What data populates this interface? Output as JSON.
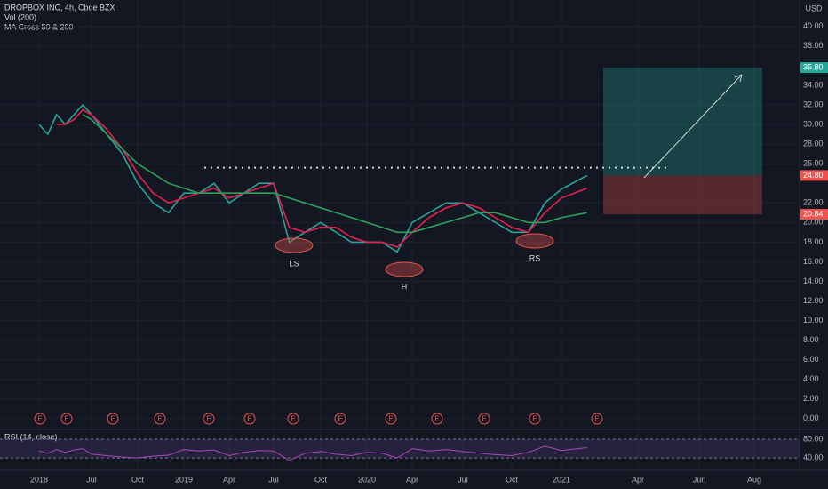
{
  "header": {
    "symbol": "DROPBOX INC, 4h, Cboe BZX",
    "volume": "Vol (200)",
    "indicator": "MA Cross 50 & 200",
    "currency": "USD",
    "earnings_marker": "E"
  },
  "annotations": [
    "LS",
    "H",
    "RS"
  ],
  "levels": {
    "neckline": 25.6,
    "target": 35.8,
    "entry": 24.8,
    "stop": 20.84
  },
  "price_tags": [
    {
      "value": 35.8,
      "label": "35.80",
      "color": "#26a69a"
    },
    {
      "value": 24.8,
      "label": "24.80",
      "color": "#ef5350"
    },
    {
      "value": 20.84,
      "label": "20.84",
      "color": "#ef5350"
    }
  ],
  "chart_data": [
    {
      "type": "line",
      "categories": [
        "2018",
        null,
        null,
        null,
        null,
        null,
        "Jul",
        null,
        null,
        "Oct",
        null,
        null,
        "2019",
        null,
        null,
        "Apr",
        null,
        null,
        "Jul",
        null,
        null,
        "Oct",
        null,
        null,
        "2020",
        null,
        null,
        "Apr",
        null,
        null,
        "Jul",
        null,
        null,
        "Oct",
        null,
        null,
        "2021",
        null,
        null,
        "Apr",
        null,
        "Jun",
        null,
        "Aug"
      ],
      "series": [
        {
          "color": "#26a69a",
          "values": [
            30,
            29,
            31,
            30,
            31,
            32,
            31,
            29,
            27,
            24,
            22,
            21,
            23,
            23,
            24,
            22,
            23,
            24,
            24,
            18,
            19,
            20,
            19,
            18,
            18,
            18,
            17,
            20,
            21,
            22,
            22,
            21,
            20,
            19,
            19,
            22,
            23.4,
            24.8,
            null,
            null,
            null,
            null,
            null,
            null
          ]
        },
        {
          "color": "#e91e4f",
          "values": [
            null,
            null,
            30,
            30,
            30.5,
            31.5,
            31,
            29.5,
            27.5,
            25,
            23,
            22,
            22.5,
            23,
            23.5,
            22.5,
            23,
            23.5,
            24,
            19.5,
            19,
            19.5,
            19.5,
            18.5,
            18,
            18,
            17.5,
            19,
            20.5,
            21.5,
            22,
            21.5,
            20.5,
            19.5,
            19,
            21,
            22.5,
            23.5,
            null,
            null,
            null,
            null,
            null,
            null
          ]
        },
        {
          "color": "#2e9e5b",
          "values": [
            null,
            null,
            null,
            null,
            null,
            31,
            30.5,
            29,
            27.5,
            26,
            25,
            24,
            23.5,
            23,
            23,
            23,
            23,
            23,
            23,
            22.5,
            22,
            21.5,
            21,
            20.5,
            20,
            19.5,
            19,
            19,
            19.5,
            20,
            20.5,
            21,
            21,
            20.5,
            20,
            20,
            20.5,
            21,
            null,
            null,
            null,
            null,
            null,
            null
          ]
        }
      ],
      "ylim": [
        -1.1,
        42.7
      ],
      "yticks": [
        {
          "value": 0,
          "label": "0.00"
        },
        {
          "value": 2,
          "label": "2.00"
        },
        {
          "value": 4,
          "label": "4.00"
        },
        {
          "value": 6,
          "label": "6.00"
        },
        {
          "value": 8,
          "label": "8.00"
        },
        {
          "value": 10,
          "label": "10.00"
        },
        {
          "value": 12,
          "label": "12.00"
        },
        {
          "value": 14,
          "label": "14.00"
        },
        {
          "value": 16,
          "label": "16.00"
        },
        {
          "value": 18,
          "label": "18.00"
        },
        {
          "value": 20,
          "label": "20.00"
        },
        {
          "value": 22,
          "label": "22.00"
        },
        {
          "value": 26,
          "label": "26.00"
        },
        {
          "value": 28,
          "label": "28.00"
        },
        {
          "value": 30,
          "label": "30.00"
        },
        {
          "value": 32,
          "label": "32.00"
        },
        {
          "value": 34,
          "label": "34.00"
        },
        {
          "value": 38,
          "label": "38.00"
        },
        {
          "value": 40,
          "label": "40.00"
        }
      ],
      "grid": true
    },
    {
      "type": "line",
      "title": "RSI (14, close)",
      "series": [
        {
          "color": "#ab47bc",
          "values": [
            55,
            50,
            58,
            52,
            57,
            60,
            48,
            45,
            42,
            40,
            44,
            46,
            58,
            55,
            57,
            45,
            52,
            56,
            55,
            35,
            50,
            54,
            48,
            45,
            52,
            50,
            40,
            60,
            55,
            58,
            54,
            50,
            47,
            45,
            52,
            65,
            56,
            62,
            null,
            null,
            null,
            null,
            null,
            null
          ]
        }
      ],
      "ylim": [
        27,
        97
      ],
      "yticks": [
        {
          "value": 40,
          "label": "40.00"
        },
        {
          "value": 80,
          "label": "80.00"
        }
      ]
    }
  ]
}
